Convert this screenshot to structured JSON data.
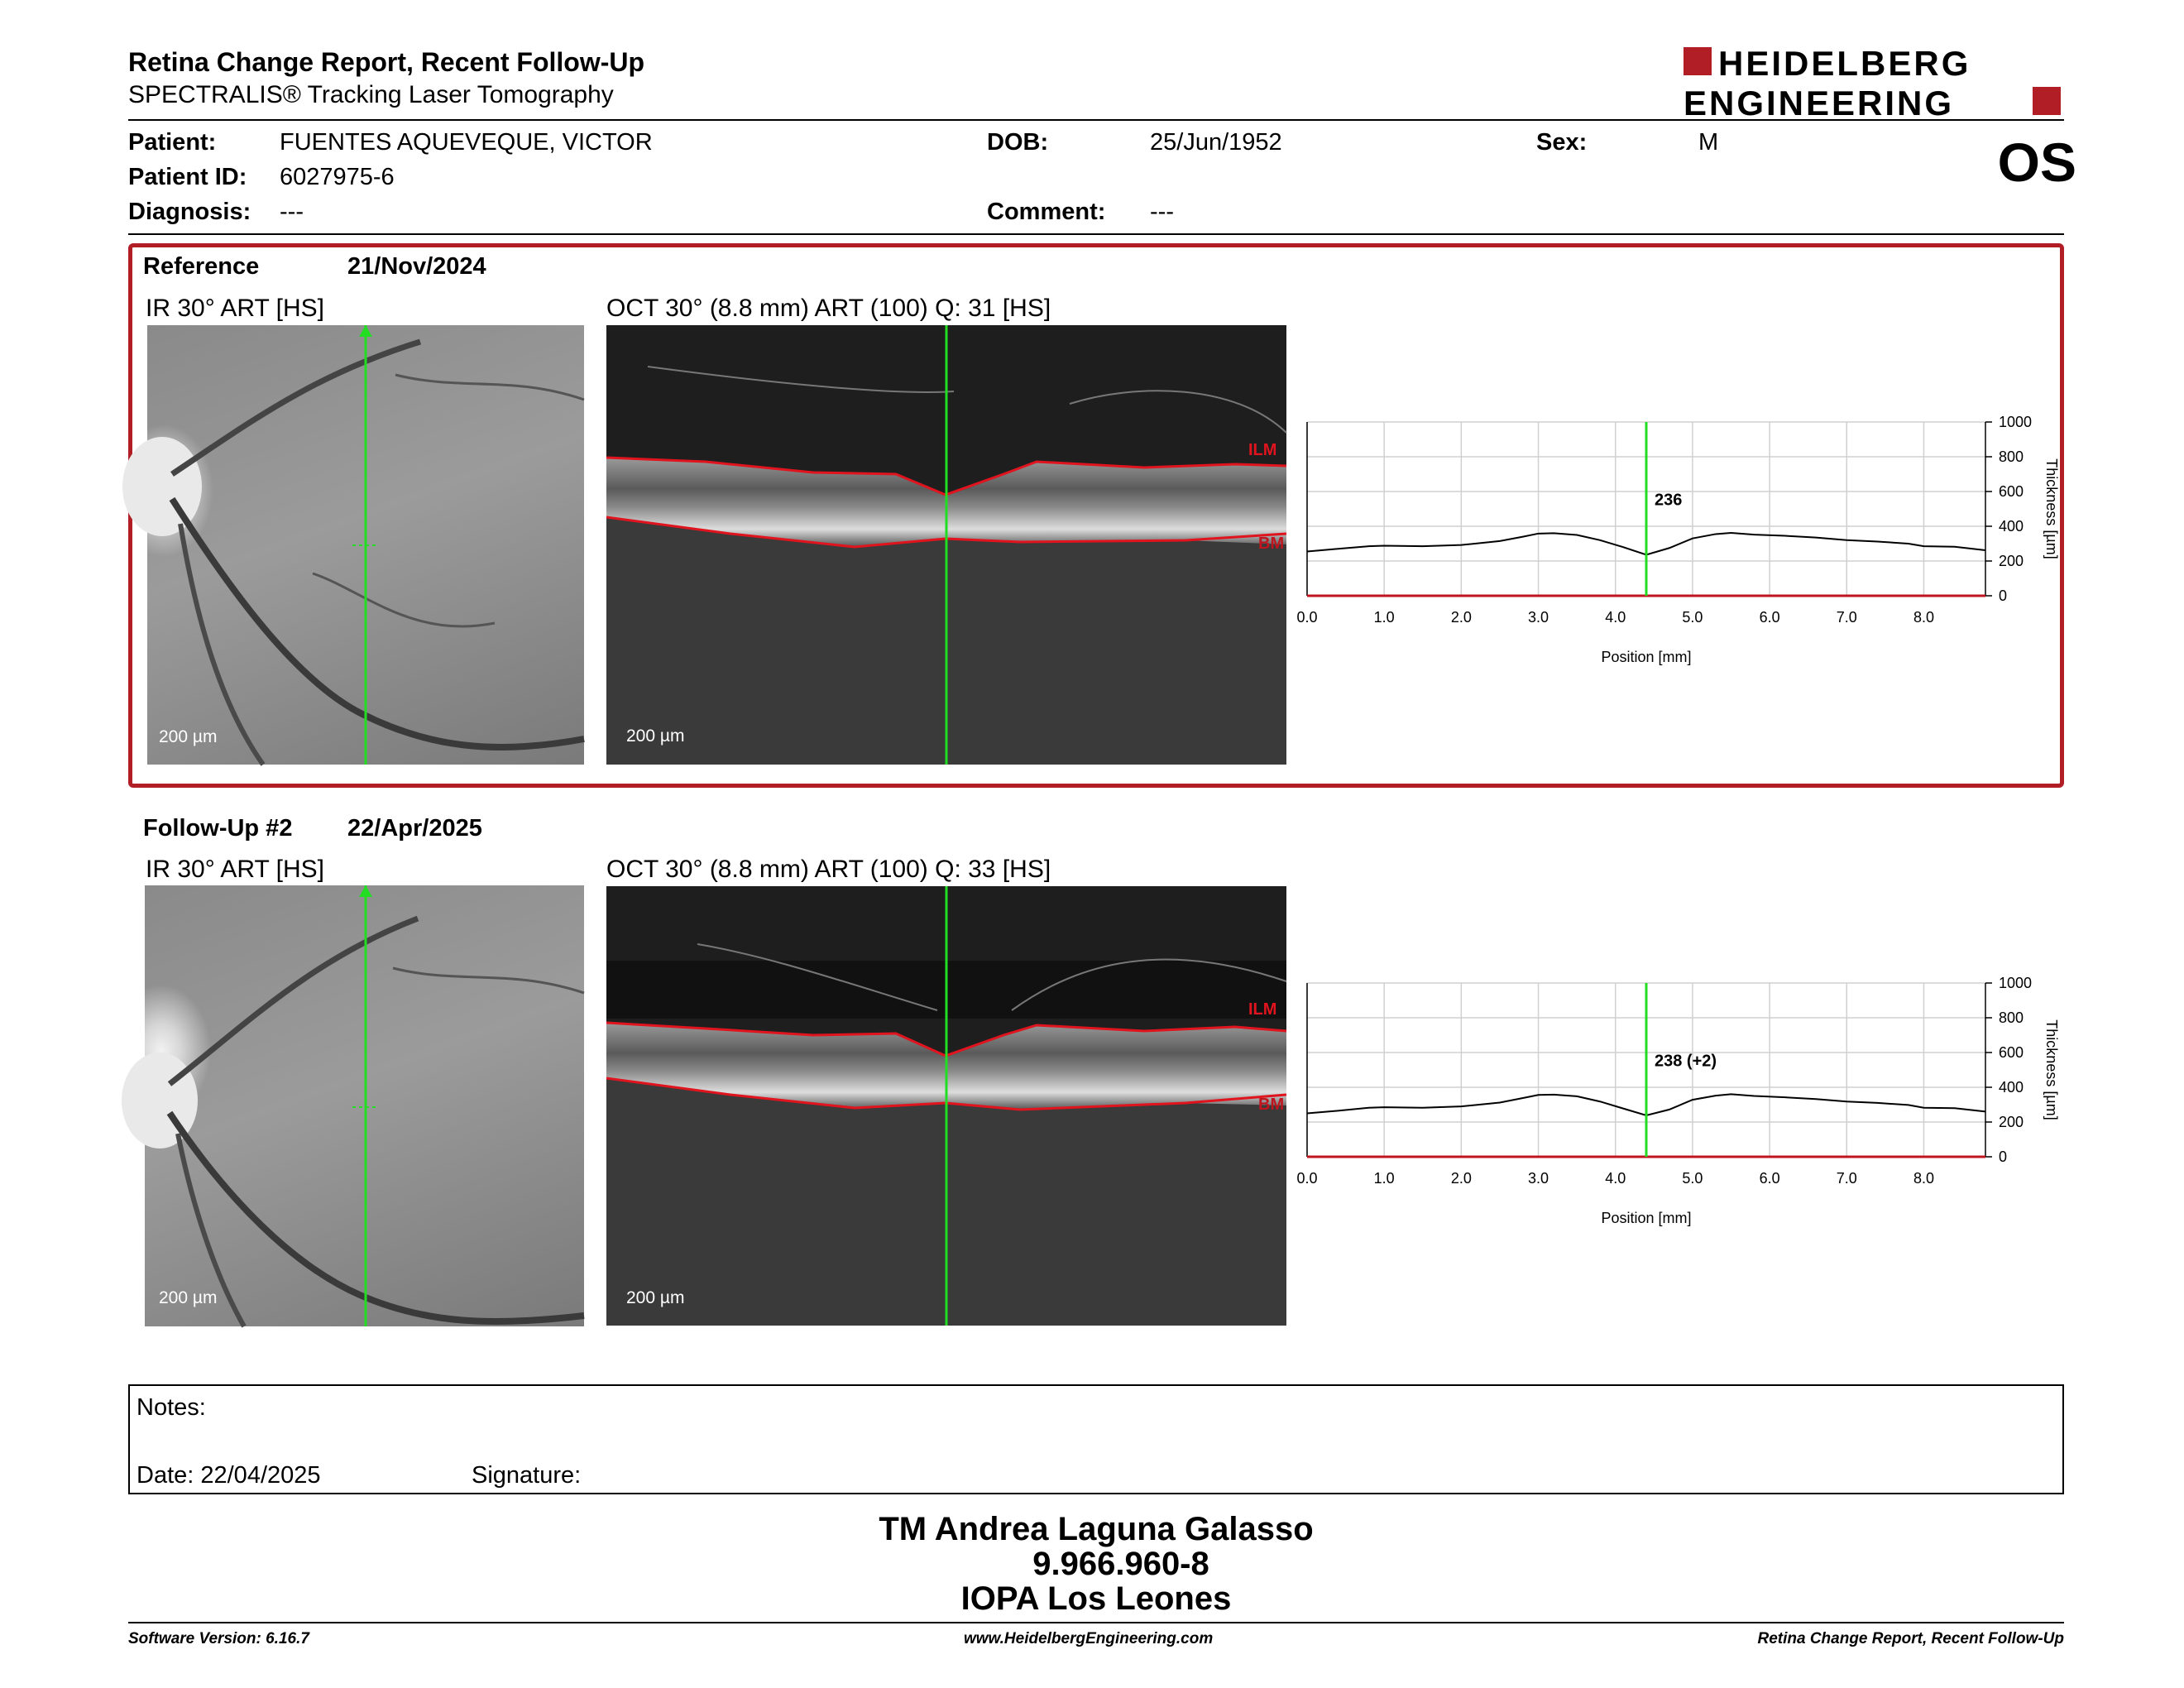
{
  "header": {
    "title": "Retina Change Report, Recent Follow-Up",
    "subtitle": "SPECTRALIS® Tracking Laser Tomography",
    "logo_line1": "HEIDELBERG",
    "logo_line2": "ENGINEERING",
    "eye": "OS"
  },
  "patient": {
    "name_label": "Patient:",
    "name": "FUENTES AQUEVEQUE, VICTOR",
    "id_label": "Patient ID:",
    "id": "6027975-6",
    "diagnosis_label": "Diagnosis:",
    "diagnosis": "---",
    "dob_label": "DOB:",
    "dob": "25/Jun/1952",
    "comment_label": "Comment:",
    "comment": "---",
    "sex_label": "Sex:",
    "sex": "M"
  },
  "reference": {
    "label": "Reference",
    "date": "21/Nov/2024",
    "ir_label": "IR 30° ART [HS]",
    "oct_label": "OCT 30° (8.8 mm) ART (100) Q: 31 [HS]",
    "scale_ir": "200 µm",
    "scale_oct": "200 µm",
    "ilm": "ILM",
    "bm": "BM"
  },
  "followup": {
    "label": "Follow-Up #2",
    "date": "22/Apr/2025",
    "ir_label": "IR 30° ART [HS]",
    "oct_label": "OCT 30° (8.8 mm) ART (100) Q: 33 [HS]",
    "scale_ir": "200 µm",
    "scale_oct": "200 µm",
    "ilm": "ILM",
    "bm": "BM"
  },
  "notes": {
    "notes_label": "Notes:",
    "date_label": "Date: 22/04/2025",
    "signature_label": "Signature:"
  },
  "signer": {
    "name": "TM Andrea Laguna Galasso",
    "id": "9.966.960-8",
    "org": "IOPA Los Leones"
  },
  "footer": {
    "software": "Software Version: 6.16.7",
    "website": "www.HeidelbergEngineering.com",
    "report": "Retina Change Report, Recent Follow-Up"
  },
  "colors": {
    "accent": "#b21e25",
    "marker": "#22dd22",
    "layer": "#e0141e"
  },
  "chart_data": [
    {
      "type": "line",
      "xlabel": "Position [mm]",
      "ylabel": "Thickness [µm]",
      "xlim": [
        0.0,
        8.8
      ],
      "ylim": [
        0,
        1000
      ],
      "x_ticks": [
        "0.0",
        "1.0",
        "2.0",
        "3.0",
        "4.0",
        "5.0",
        "6.0",
        "7.0",
        "8.0"
      ],
      "y_ticks": [
        "0",
        "200",
        "400",
        "600",
        "800",
        "1000"
      ],
      "marker_x": 4.4,
      "marker_label": "236",
      "grid": true,
      "x": [
        0.0,
        0.4,
        0.8,
        1.0,
        1.5,
        2.0,
        2.5,
        2.8,
        3.0,
        3.2,
        3.5,
        3.8,
        4.1,
        4.4,
        4.7,
        5.0,
        5.3,
        5.5,
        5.8,
        6.2,
        6.6,
        7.0,
        7.4,
        7.8,
        8.0,
        8.4,
        8.8
      ],
      "y": [
        255,
        270,
        285,
        288,
        285,
        292,
        315,
        340,
        358,
        360,
        350,
        320,
        280,
        236,
        275,
        330,
        355,
        362,
        352,
        345,
        335,
        320,
        312,
        300,
        285,
        282,
        262
      ]
    },
    {
      "type": "line",
      "xlabel": "Position [mm]",
      "ylabel": "Thickness [µm]",
      "xlim": [
        0.0,
        8.8
      ],
      "ylim": [
        0,
        1000
      ],
      "x_ticks": [
        "0.0",
        "1.0",
        "2.0",
        "3.0",
        "4.0",
        "5.0",
        "6.0",
        "7.0",
        "8.0"
      ],
      "y_ticks": [
        "0",
        "200",
        "400",
        "600",
        "800",
        "1000"
      ],
      "marker_x": 4.4,
      "marker_label": "238 (+2)",
      "grid": true,
      "x": [
        0.0,
        0.4,
        0.8,
        1.0,
        1.5,
        2.0,
        2.5,
        2.8,
        3.0,
        3.2,
        3.5,
        3.8,
        4.1,
        4.4,
        4.7,
        5.0,
        5.3,
        5.5,
        5.8,
        6.2,
        6.6,
        7.0,
        7.4,
        7.8,
        8.0,
        8.4,
        8.8
      ],
      "y": [
        250,
        265,
        282,
        285,
        282,
        290,
        312,
        338,
        356,
        358,
        348,
        318,
        278,
        238,
        272,
        328,
        352,
        360,
        350,
        342,
        332,
        318,
        310,
        298,
        282,
        280,
        260
      ]
    }
  ]
}
